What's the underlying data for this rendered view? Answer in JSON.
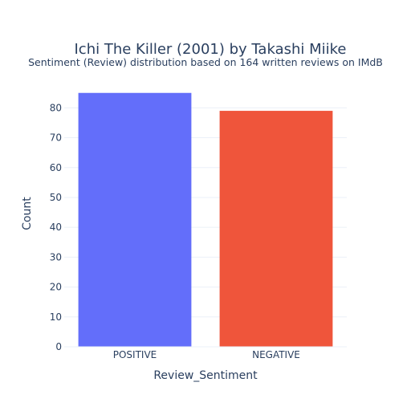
{
  "chart_data": {
    "type": "bar",
    "title": "Ichi The Killer (2001) by Takashi Miike",
    "subtitle": "Sentiment (Review) distribution based on 164 written reviews on IMdB",
    "xlabel": "Review_Sentiment",
    "ylabel": "Count",
    "categories": [
      "POSITIVE",
      "NEGATIVE"
    ],
    "values": [
      85,
      79
    ],
    "colors": [
      "#636efa",
      "#ef553b"
    ],
    "ylim": [
      0,
      89.5
    ],
    "yticks": [
      0,
      10,
      20,
      30,
      40,
      50,
      60,
      70,
      80
    ],
    "grid": true,
    "legend": "none"
  }
}
